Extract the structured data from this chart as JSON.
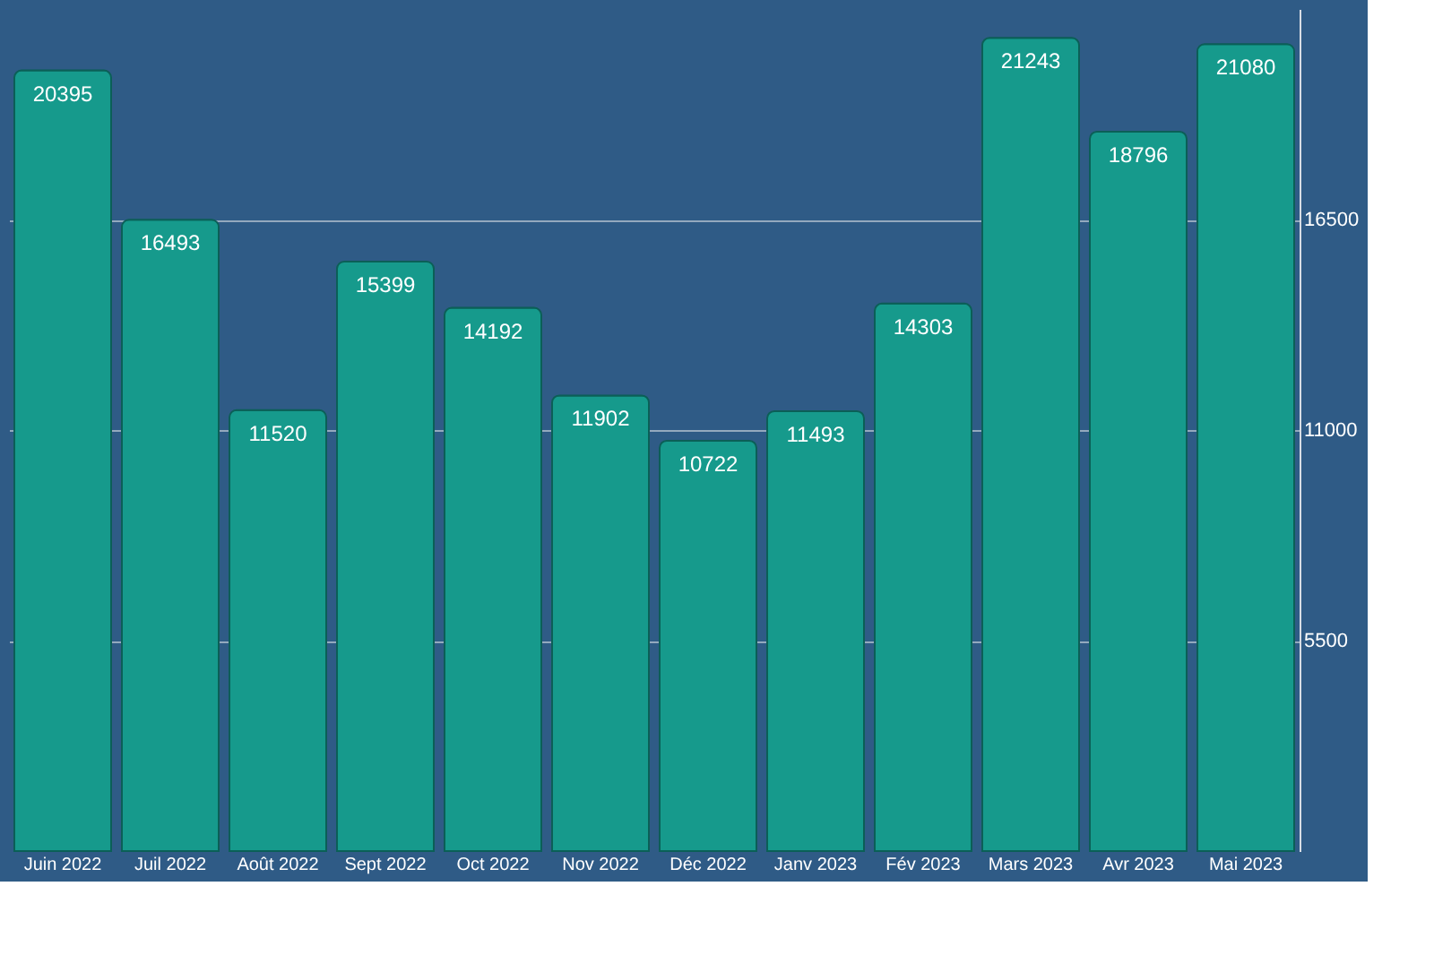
{
  "chart_data": {
    "type": "bar",
    "categories": [
      "Juin 2022",
      "Juil 2022",
      "Août 2022",
      "Sept 2022",
      "Oct 2022",
      "Nov 2022",
      "Déc 2022",
      "Janv 2023",
      "Fév 2023",
      "Mars 2023",
      "Avr 2023",
      "Mai 2023"
    ],
    "values": [
      20395,
      16493,
      11520,
      15399,
      14192,
      11902,
      10722,
      11493,
      14303,
      21243,
      18796,
      21080
    ],
    "color": "#169a8c",
    "ylim": [
      0,
      22000
    ],
    "yticks": [
      5500,
      11000,
      16500
    ],
    "grid": "y",
    "data_labels": true
  }
}
